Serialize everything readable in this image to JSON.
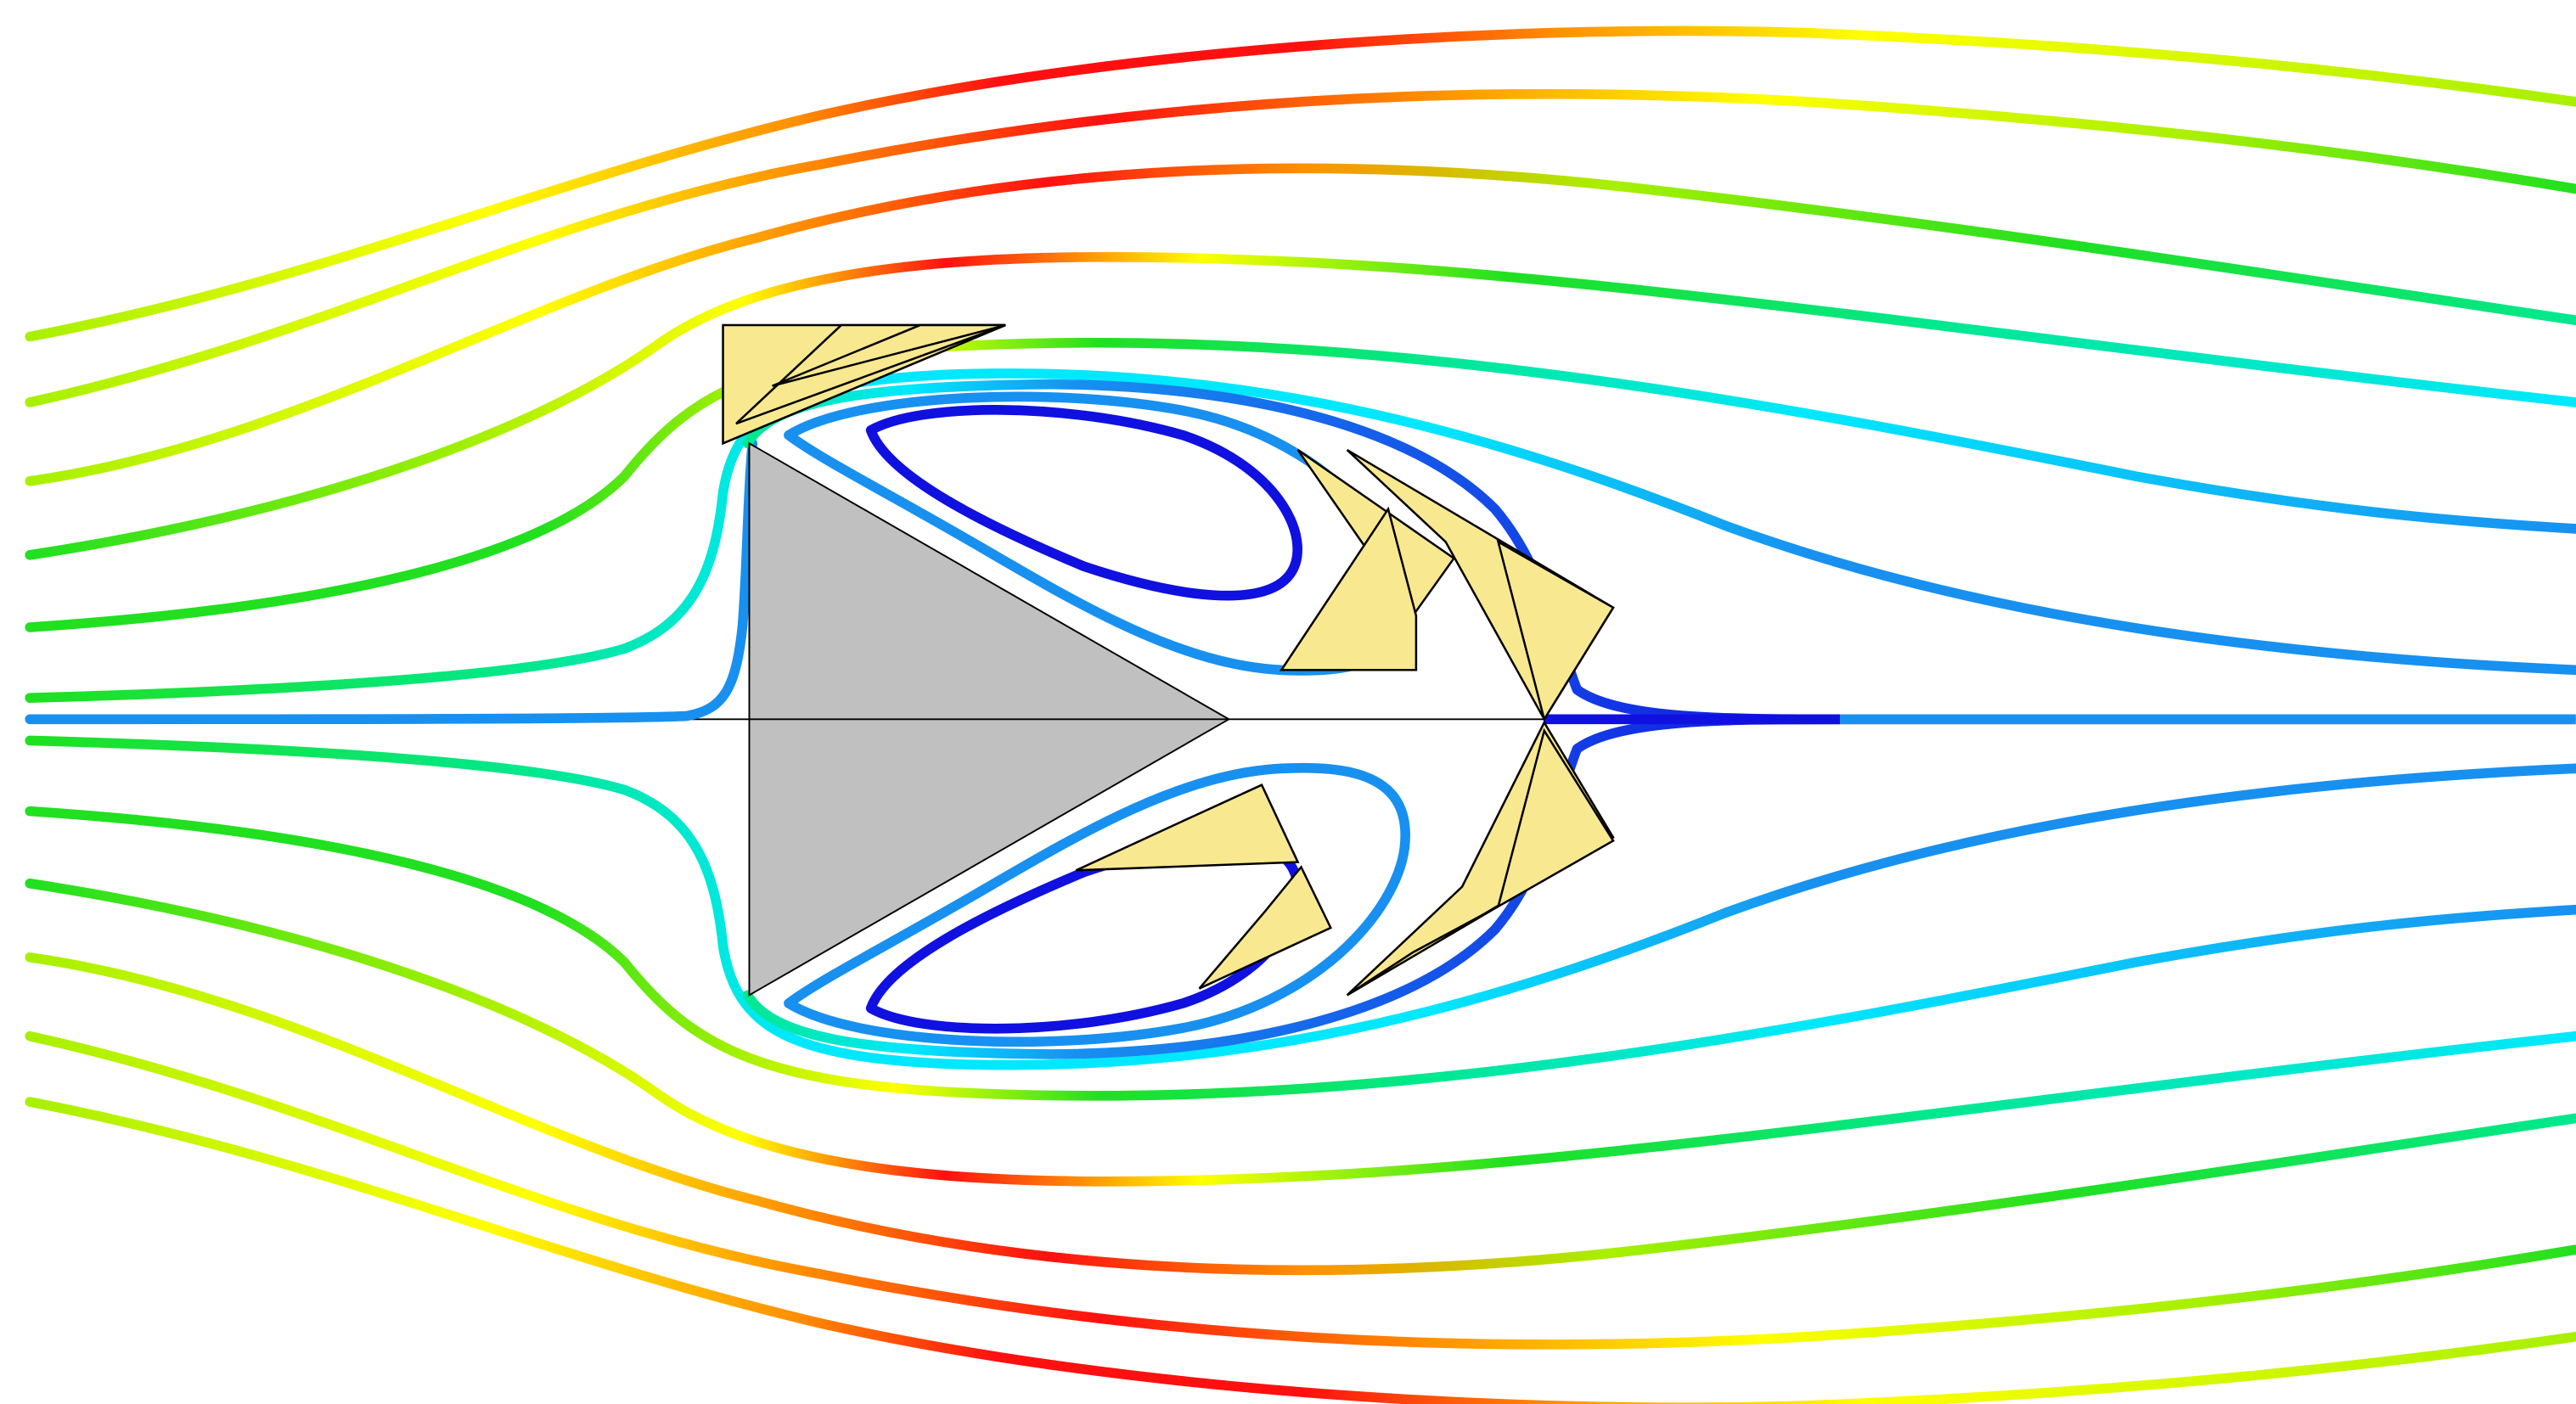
{
  "figure": {
    "description_visible_text": "",
    "colormap": [
      "#1010e0",
      "#1890f0",
      "#00e8ff",
      "#00e890",
      "#20e020",
      "#a8f000",
      "#ffff00",
      "#ff9000",
      "#ff1010"
    ],
    "obstacle_color": "#c0c0c0",
    "glyph_color": "#f8e890",
    "glyph_shadow_color": "#7070a8",
    "axis_line_color": "#000000"
  }
}
